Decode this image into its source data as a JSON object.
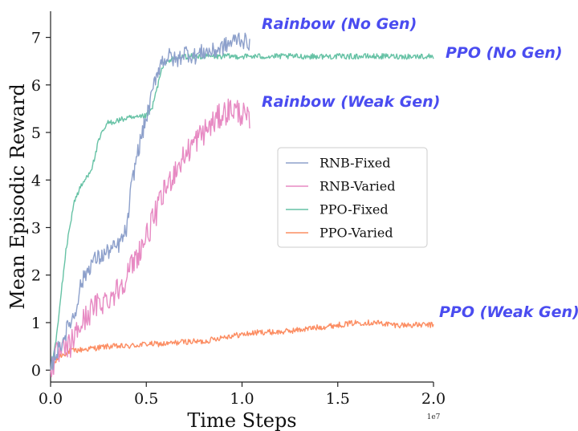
{
  "chart_data": {
    "type": "line",
    "xlabel": "Time Steps",
    "ylabel": "Mean Episodic Reward",
    "x_scale_note": "1e7",
    "xlim": [
      0,
      2.0
    ],
    "ylim": [
      -0.25,
      7.55
    ],
    "x_ticks": [
      0.0,
      0.5,
      1.0,
      1.5,
      2.0
    ],
    "x_tick_labels": [
      "0.0",
      "0.5",
      "1.0",
      "1.5",
      "2.0"
    ],
    "y_ticks": [
      0,
      1,
      2,
      3,
      4,
      5,
      6,
      7
    ],
    "y_tick_labels": [
      "0",
      "1",
      "2",
      "3",
      "4",
      "5",
      "6",
      "7"
    ],
    "grid": false,
    "legend_placement": "center-right",
    "series": [
      {
        "name": "RNB-Fixed",
        "color": "#8da0cb",
        "noise": 0.18,
        "points": [
          [
            0.0,
            0.0
          ],
          [
            0.02,
            0.3
          ],
          [
            0.05,
            0.5
          ],
          [
            0.08,
            0.8
          ],
          [
            0.1,
            1.0
          ],
          [
            0.13,
            1.2
          ],
          [
            0.15,
            1.7
          ],
          [
            0.18,
            2.0
          ],
          [
            0.22,
            2.3
          ],
          [
            0.27,
            2.4
          ],
          [
            0.3,
            2.5
          ],
          [
            0.35,
            2.6
          ],
          [
            0.38,
            2.8
          ],
          [
            0.4,
            3.0
          ],
          [
            0.42,
            3.8
          ],
          [
            0.45,
            4.5
          ],
          [
            0.48,
            5.0
          ],
          [
            0.5,
            5.3
          ],
          [
            0.52,
            5.6
          ],
          [
            0.55,
            6.2
          ],
          [
            0.58,
            6.5
          ],
          [
            0.62,
            6.6
          ],
          [
            0.66,
            6.5
          ],
          [
            0.7,
            6.7
          ],
          [
            0.75,
            6.6
          ],
          [
            0.8,
            6.7
          ],
          [
            0.85,
            6.7
          ],
          [
            0.9,
            6.8
          ],
          [
            0.95,
            6.9
          ],
          [
            0.98,
            7.0
          ],
          [
            1.02,
            6.9
          ],
          [
            1.04,
            6.9
          ]
        ]
      },
      {
        "name": "RNB-Varied",
        "color": "#e78ac3",
        "noise": 0.28,
        "points": [
          [
            0.0,
            0.0
          ],
          [
            0.03,
            0.3
          ],
          [
            0.07,
            0.4
          ],
          [
            0.1,
            0.5
          ],
          [
            0.15,
            0.9
          ],
          [
            0.2,
            1.2
          ],
          [
            0.25,
            1.4
          ],
          [
            0.3,
            1.5
          ],
          [
            0.35,
            1.7
          ],
          [
            0.4,
            2.0
          ],
          [
            0.45,
            2.4
          ],
          [
            0.5,
            2.8
          ],
          [
            0.55,
            3.3
          ],
          [
            0.6,
            3.8
          ],
          [
            0.65,
            4.2
          ],
          [
            0.7,
            4.5
          ],
          [
            0.75,
            4.8
          ],
          [
            0.8,
            5.0
          ],
          [
            0.85,
            5.2
          ],
          [
            0.9,
            5.4
          ],
          [
            0.95,
            5.5
          ],
          [
            1.0,
            5.4
          ],
          [
            1.04,
            5.2
          ]
        ]
      },
      {
        "name": "PPO-Fixed",
        "color": "#66c2a5",
        "noise": 0.06,
        "points": [
          [
            0.0,
            0.0
          ],
          [
            0.02,
            0.4
          ],
          [
            0.04,
            1.0
          ],
          [
            0.06,
            1.8
          ],
          [
            0.08,
            2.5
          ],
          [
            0.1,
            3.0
          ],
          [
            0.12,
            3.5
          ],
          [
            0.15,
            3.8
          ],
          [
            0.18,
            4.0
          ],
          [
            0.22,
            4.3
          ],
          [
            0.25,
            4.8
          ],
          [
            0.27,
            5.0
          ],
          [
            0.3,
            5.2
          ],
          [
            0.35,
            5.25
          ],
          [
            0.4,
            5.3
          ],
          [
            0.45,
            5.3
          ],
          [
            0.5,
            5.35
          ],
          [
            0.53,
            5.5
          ],
          [
            0.56,
            6.0
          ],
          [
            0.58,
            6.3
          ],
          [
            0.6,
            6.5
          ],
          [
            0.65,
            6.55
          ],
          [
            0.7,
            6.6
          ],
          [
            0.8,
            6.6
          ],
          [
            1.0,
            6.6
          ],
          [
            1.2,
            6.6
          ],
          [
            1.4,
            6.6
          ],
          [
            1.6,
            6.6
          ],
          [
            1.8,
            6.6
          ],
          [
            2.0,
            6.6
          ]
        ]
      },
      {
        "name": "PPO-Varied",
        "color": "#fc8d62",
        "noise": 0.06,
        "points": [
          [
            0.0,
            0.0
          ],
          [
            0.03,
            0.2
          ],
          [
            0.05,
            0.3
          ],
          [
            0.1,
            0.4
          ],
          [
            0.2,
            0.45
          ],
          [
            0.3,
            0.5
          ],
          [
            0.4,
            0.5
          ],
          [
            0.5,
            0.55
          ],
          [
            0.6,
            0.55
          ],
          [
            0.7,
            0.6
          ],
          [
            0.8,
            0.6
          ],
          [
            0.9,
            0.7
          ],
          [
            1.0,
            0.75
          ],
          [
            1.1,
            0.8
          ],
          [
            1.2,
            0.8
          ],
          [
            1.3,
            0.85
          ],
          [
            1.4,
            0.9
          ],
          [
            1.5,
            0.95
          ],
          [
            1.6,
            1.0
          ],
          [
            1.7,
            1.0
          ],
          [
            1.8,
            0.95
          ],
          [
            1.9,
            0.95
          ],
          [
            2.0,
            0.95
          ]
        ]
      }
    ],
    "annotations": [
      {
        "text": "Rainbow (No Gen)"
      },
      {
        "text": "PPO (No Gen)"
      },
      {
        "text": "Rainbow (Weak Gen)"
      },
      {
        "text": "PPO (Weak Gen)"
      }
    ]
  }
}
